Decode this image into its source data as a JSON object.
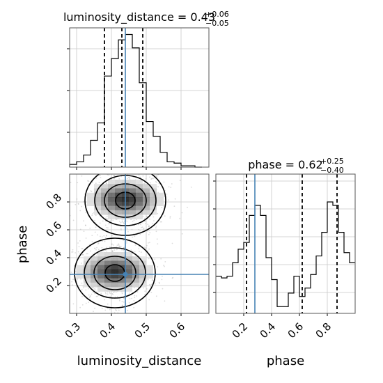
{
  "chart_data": {
    "type": "corner",
    "parameters": [
      "luminosity_distance",
      "phase"
    ],
    "truths": {
      "luminosity_distance": 0.44,
      "phase": 0.28
    },
    "luminosity_distance_marginal": {
      "type": "histogram",
      "title": {
        "main": "luminosity_distance = 0.43",
        "upper": "+0.06",
        "lower": "−0.05"
      },
      "bin_edges": [
        0.28,
        0.3,
        0.32,
        0.34,
        0.36,
        0.38,
        0.4,
        0.42,
        0.44,
        0.46,
        0.48,
        0.5,
        0.52,
        0.54,
        0.56,
        0.58,
        0.6,
        0.62,
        0.64,
        0.66
      ],
      "counts": [
        2,
        4,
        9,
        20,
        33,
        68,
        81,
        95,
        99,
        89,
        63,
        34,
        23,
        11,
        4,
        3,
        1,
        1,
        0
      ],
      "quantiles": [
        0.38,
        0.43,
        0.49
      ],
      "xlim": [
        0.28,
        0.68
      ]
    },
    "phase_marginal": {
      "type": "histogram",
      "title": {
        "main": "phase = 0.62",
        "upper": "+0.25",
        "lower": "−0.40"
      },
      "bin_edges": [
        0.0,
        0.04,
        0.08,
        0.12,
        0.16,
        0.2,
        0.24,
        0.28,
        0.32,
        0.36,
        0.4,
        0.44,
        0.48,
        0.52,
        0.56,
        0.6,
        0.64,
        0.68,
        0.72,
        0.76,
        0.8,
        0.84,
        0.88,
        0.92,
        0.96,
        1.0
      ],
      "counts": [
        22,
        21,
        22,
        30,
        38,
        42,
        58,
        64,
        58,
        33,
        20,
        4,
        4,
        12,
        22,
        10,
        15,
        23,
        34,
        48,
        66,
        64,
        48,
        36,
        30
      ],
      "quantiles": [
        0.22,
        0.62,
        0.87
      ],
      "xlim": [
        0.0,
        1.0
      ]
    },
    "joint": {
      "type": "2d-histogram-contour",
      "xlim": [
        0.28,
        0.68
      ],
      "ylim": [
        0.0,
        1.0
      ],
      "modes": [
        {
          "x": 0.44,
          "y": 0.81
        },
        {
          "x": 0.41,
          "y": 0.29
        }
      ]
    },
    "x_ticks": {
      "luminosity_distance": [
        "0.3",
        "0.4",
        "0.5",
        "0.6"
      ],
      "phase": [
        "0.2",
        "0.4",
        "0.6",
        "0.8"
      ]
    },
    "y_ticks": {
      "phase": [
        "0.2",
        "0.4",
        "0.6",
        "0.8"
      ]
    },
    "xlabels": [
      "luminosity_distance",
      "phase"
    ],
    "ylabel": "phase",
    "truth_color": "#4682b4",
    "grid": true
  }
}
